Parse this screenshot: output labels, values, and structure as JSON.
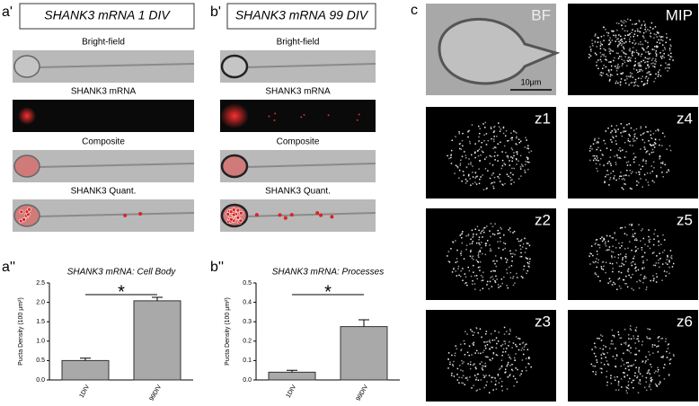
{
  "panels": [
    {
      "label": "a'",
      "title": "SHANK3 mRNA 1 DIV",
      "images": [
        "Bright-field",
        "SHANK3 mRNA",
        "Composite",
        "SHANK3 Quant."
      ]
    },
    {
      "label": "b'",
      "title": "SHANK3 mRNA 99 DIV",
      "images": [
        "Bright-field",
        "SHANK3 mRNA",
        "Composite",
        "SHANK3 Quant."
      ]
    }
  ],
  "panel_c": {
    "label": "c",
    "images": [
      "BF",
      "MIP",
      "z1",
      "z4",
      "z2",
      "z5",
      "z3",
      "z6"
    ],
    "scale": "10μm"
  },
  "chart_data": [
    {
      "type": "bar",
      "panel_label": "a''",
      "title": "SHANK3 mRNA: Cell Body",
      "ylabel": "Pucta Density (100 μm²)",
      "categories": [
        "1DIV",
        "99DIV"
      ],
      "values": [
        0.5,
        2.04
      ],
      "errors": [
        0.06,
        0.09
      ],
      "color": "#a9a9a9",
      "ylim": [
        0,
        2.5
      ],
      "yticks": [
        {
          "value": 0,
          "label": "0.0"
        },
        0.5,
        {
          "value": 1,
          "label": "1.0"
        },
        1.5,
        {
          "value": 2,
          "label": "2.0"
        },
        2.5
      ],
      "annotation": "*"
    },
    {
      "type": "bar",
      "panel_label": "b''",
      "title": "SHANK3 mRNA: Processes",
      "ylabel": "Pucta Density (100 μm²)",
      "categories": [
        "1DIV",
        "99DIV"
      ],
      "values": [
        0.04,
        0.275
      ],
      "errors": [
        0.01,
        0.035
      ],
      "color": "#a9a9a9",
      "ylim": [
        0,
        0.5
      ],
      "yticks": [
        {
          "value": 0,
          "label": "0.0"
        },
        0.1,
        0.2,
        0.3,
        0.4,
        0.5
      ],
      "annotation": "*"
    }
  ]
}
